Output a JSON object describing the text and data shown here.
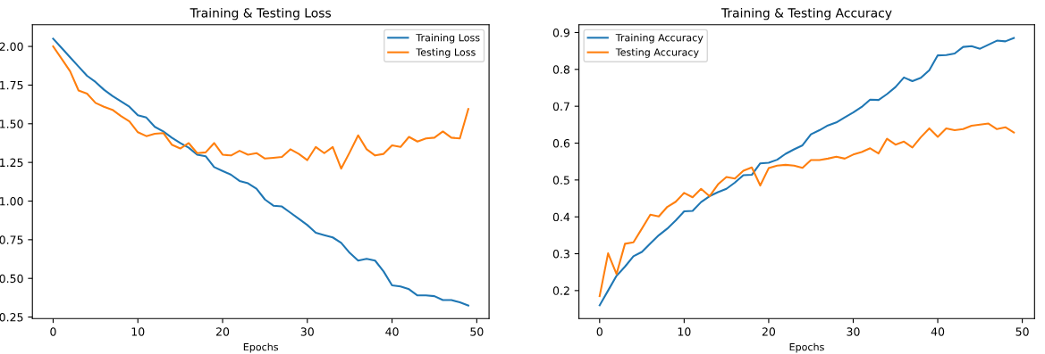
{
  "chart_data": [
    {
      "type": "line",
      "title": "Training & Testing Loss",
      "xlabel": "Epochs",
      "legend": "top right",
      "grid": false,
      "x": [
        0,
        1,
        2,
        3,
        4,
        5,
        6,
        7,
        8,
        9,
        10,
        11,
        12,
        13,
        14,
        15,
        16,
        17,
        18,
        19,
        20,
        21,
        22,
        23,
        24,
        25,
        26,
        27,
        28,
        29,
        30,
        31,
        32,
        33,
        34,
        35,
        36,
        37,
        38,
        39,
        40,
        41,
        42,
        43,
        44,
        45,
        46,
        47,
        48,
        49
      ],
      "xlim": [
        -2.45,
        51.45
      ],
      "xticks": [
        0,
        10,
        20,
        30,
        40,
        50
      ],
      "ylim": [
        0.24,
        2.14
      ],
      "yticks": [
        {
          "value": 0.25,
          "label": "0.25"
        },
        {
          "value": 0.5,
          "label": "0.50"
        },
        {
          "value": 0.75,
          "label": "0.75"
        },
        {
          "value": 1.0,
          "label": "1.00"
        },
        {
          "value": 1.25,
          "label": "1.25"
        },
        {
          "value": 1.5,
          "label": "1.50"
        },
        {
          "value": 1.75,
          "label": "1.75"
        },
        {
          "value": 2.0,
          "label": "2.00"
        }
      ],
      "series": [
        {
          "name": "Training Loss",
          "color": "#1f77b4",
          "values": [
            2.05,
            1.99,
            1.93,
            1.87,
            1.81,
            1.77,
            1.72,
            1.68,
            1.645,
            1.61,
            1.555,
            1.54,
            1.48,
            1.45,
            1.41,
            1.375,
            1.345,
            1.3,
            1.29,
            1.22,
            1.195,
            1.17,
            1.13,
            1.115,
            1.08,
            1.01,
            0.97,
            0.965,
            0.925,
            0.885,
            0.845,
            0.795,
            0.78,
            0.765,
            0.73,
            0.665,
            0.615,
            0.627,
            0.615,
            0.545,
            0.455,
            0.448,
            0.43,
            0.39,
            0.39,
            0.385,
            0.36,
            0.36,
            0.345,
            0.325
          ]
        },
        {
          "name": "Testing Loss",
          "color": "#ff7f0e",
          "values": [
            2.0,
            1.92,
            1.84,
            1.715,
            1.695,
            1.635,
            1.61,
            1.59,
            1.55,
            1.515,
            1.445,
            1.42,
            1.435,
            1.44,
            1.365,
            1.34,
            1.375,
            1.31,
            1.315,
            1.375,
            1.3,
            1.295,
            1.325,
            1.3,
            1.31,
            1.275,
            1.28,
            1.285,
            1.335,
            1.305,
            1.265,
            1.35,
            1.31,
            1.35,
            1.21,
            1.315,
            1.425,
            1.335,
            1.295,
            1.305,
            1.36,
            1.35,
            1.415,
            1.385,
            1.405,
            1.41,
            1.45,
            1.41,
            1.405,
            1.595
          ]
        }
      ]
    },
    {
      "type": "line",
      "title": "Training & Testing Accuracy",
      "xlabel": "Epochs",
      "legend": "top left",
      "grid": false,
      "x": [
        0,
        1,
        2,
        3,
        4,
        5,
        6,
        7,
        8,
        9,
        10,
        11,
        12,
        13,
        14,
        15,
        16,
        17,
        18,
        19,
        20,
        21,
        22,
        23,
        24,
        25,
        26,
        27,
        28,
        29,
        30,
        31,
        32,
        33,
        34,
        35,
        36,
        37,
        38,
        39,
        40,
        41,
        42,
        43,
        44,
        45,
        46,
        47,
        48,
        49
      ],
      "xlim": [
        -2.45,
        51.45
      ],
      "xticks": [
        0,
        10,
        20,
        30,
        40,
        50
      ],
      "ylim": [
        0.124,
        0.921
      ],
      "yticks": [
        0.2,
        0.3,
        0.4,
        0.5,
        0.6,
        0.7,
        0.8,
        0.9
      ],
      "series": [
        {
          "name": "Training Accuracy",
          "color": "#1f77b4",
          "values": [
            0.16,
            0.2,
            0.24,
            0.265,
            0.293,
            0.305,
            0.328,
            0.35,
            0.368,
            0.39,
            0.415,
            0.416,
            0.44,
            0.456,
            0.467,
            0.476,
            0.493,
            0.513,
            0.514,
            0.545,
            0.547,
            0.555,
            0.571,
            0.583,
            0.594,
            0.624,
            0.635,
            0.648,
            0.656,
            0.67,
            0.683,
            0.698,
            0.718,
            0.717,
            0.733,
            0.752,
            0.778,
            0.768,
            0.777,
            0.798,
            0.838,
            0.839,
            0.843,
            0.861,
            0.863,
            0.856,
            0.867,
            0.878,
            0.876,
            0.885
          ]
        },
        {
          "name": "Testing Accuracy",
          "color": "#ff7f0e",
          "values": [
            0.185,
            0.301,
            0.245,
            0.327,
            0.331,
            0.368,
            0.406,
            0.401,
            0.427,
            0.441,
            0.465,
            0.453,
            0.476,
            0.456,
            0.488,
            0.508,
            0.504,
            0.525,
            0.534,
            0.485,
            0.532,
            0.539,
            0.541,
            0.539,
            0.533,
            0.554,
            0.554,
            0.558,
            0.563,
            0.558,
            0.569,
            0.576,
            0.586,
            0.572,
            0.612,
            0.596,
            0.604,
            0.588,
            0.616,
            0.64,
            0.617,
            0.64,
            0.635,
            0.638,
            0.647,
            0.65,
            0.653,
            0.638,
            0.643,
            0.629
          ]
        }
      ]
    }
  ]
}
